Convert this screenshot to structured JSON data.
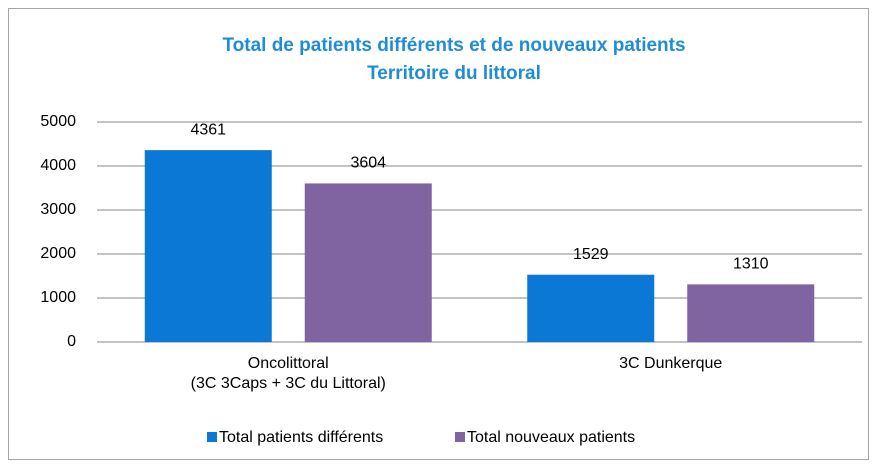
{
  "chart_data": {
    "type": "bar",
    "title": [
      "Total de patients différents et de nouveaux patients",
      "Territoire du littoral"
    ],
    "categories": [
      [
        "Oncolittoral",
        "(3C 3Caps + 3C du Littoral)"
      ],
      [
        "3C Dunkerque"
      ]
    ],
    "series": [
      {
        "name": "Total patients différents",
        "color": "#0a78d4",
        "values": [
          4361,
          1529
        ]
      },
      {
        "name": "Total nouveaux patients",
        "color": "#8064a2",
        "values": [
          3604,
          1310
        ]
      }
    ],
    "ylim": [
      0,
      5000
    ],
    "yticks": [
      0,
      1000,
      2000,
      3000,
      4000,
      5000
    ],
    "grid": true,
    "legend": "bottom"
  }
}
